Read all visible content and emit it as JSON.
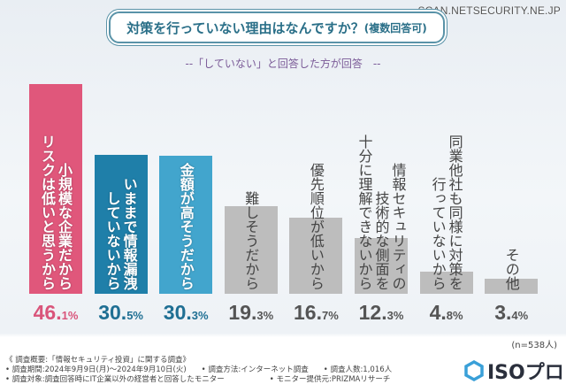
{
  "watermark": "SCAN.NETSECURITY.NE.JP",
  "title_main": "対策を行っていない理由はなんですか？",
  "title_note": "(複数回答可)",
  "subtitle": "--「していない」と回答した方が回答　--",
  "chart_data": {
    "type": "bar",
    "title": "対策を行っていない理由はなんですか？(複数回答可)",
    "categories": [
      "小規模な企業だから\nリスクは低いと思うから",
      "いままで情報漏洩\nしていないから",
      "金額が高そうだから",
      "難しそうだから",
      "優先順位が低いから",
      "情報セキュリティの\n技術的な側面を\n十分に理解できないから",
      "同業他社も同様に対策を\n行っていないから",
      "その他"
    ],
    "values": [
      46.1,
      30.5,
      30.3,
      19.3,
      16.7,
      12.3,
      4.8,
      3.4
    ],
    "value_labels": [
      [
        "46",
        "1%"
      ],
      [
        "30",
        "5%"
      ],
      [
        "30",
        "3%"
      ],
      [
        "19",
        "3%"
      ],
      [
        "16",
        "7%"
      ],
      [
        "12",
        "3%"
      ],
      [
        "4",
        "8%"
      ],
      [
        "3",
        "4%"
      ]
    ],
    "colors": [
      "#e0577b",
      "#1f7fa9",
      "#42a5cd",
      "#bdbdbd",
      "#bdbdbd",
      "#bdbdbd",
      "#bdbdbd",
      "#bdbdbd"
    ],
    "value_colors": [
      "#d9547a",
      "#1f6f93",
      "#1f6f93",
      "#555555",
      "#555555",
      "#555555",
      "#555555",
      "#555555"
    ],
    "ylim": [
      0,
      50
    ],
    "unit": "%"
  },
  "sample": "(n=538人)",
  "footer": [
    "《 調査概要:「情報セキュリティ投資」に関する調査》",
    "• 調査期間:2024年9月9日(月)～2024年9月10日(火)　　• 調査方法:インターネット調査　　• 調査人数:1,016人",
    "• 調査対象:調査回答時にIT企業以外の経営者と回答したモニター　　　　　　• モニター提供元:PRIZMAリサーチ"
  ],
  "logo_text": "ISOプロ"
}
